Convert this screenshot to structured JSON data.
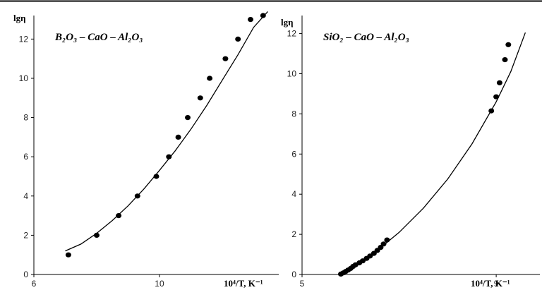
{
  "chart_data": [
    {
      "type": "scatter",
      "title": "B₂O₃ – CaO – Al₂O₃",
      "ylabel": "lgη",
      "xlabel": "10⁴/T, K⁻¹",
      "xlim": [
        6,
        13.8
      ],
      "ylim": [
        0,
        13.2
      ],
      "xticks": [
        6,
        10
      ],
      "yticks": [
        0,
        2,
        4,
        6,
        8,
        10,
        12
      ],
      "grid": false,
      "series": [
        {
          "kind": "points",
          "x": [
            7.1,
            8.0,
            8.7,
            9.3,
            9.9,
            10.3,
            10.6,
            10.9,
            11.3,
            11.6,
            12.1,
            12.5,
            12.9,
            13.3
          ],
          "y": [
            1.0,
            2.0,
            3.0,
            4.0,
            5.0,
            6.0,
            7.0,
            8.0,
            9.0,
            10.0,
            11.0,
            12.0,
            13.0,
            13.2
          ]
        },
        {
          "kind": "fit-line",
          "x": [
            7.0,
            7.5,
            8.0,
            8.5,
            9.0,
            9.5,
            10.0,
            10.5,
            11.0,
            11.5,
            12.0,
            12.5,
            13.0,
            13.45
          ],
          "y": [
            1.2,
            1.55,
            2.1,
            2.75,
            3.5,
            4.35,
            5.3,
            6.3,
            7.4,
            8.6,
            9.9,
            11.2,
            12.6,
            13.4
          ]
        }
      ]
    },
    {
      "type": "scatter",
      "title": "SiO₂ – CaO – Al₂O₃",
      "ylabel": "lgη",
      "xlabel": "10⁴/T, K⁻¹",
      "xlim": [
        5,
        9.9
      ],
      "ylim": [
        0,
        12.9
      ],
      "xticks": [
        5,
        9
      ],
      "yticks": [
        0,
        2,
        4,
        6,
        8,
        10,
        12
      ],
      "grid": false,
      "series": [
        {
          "kind": "points",
          "x": [
            5.8,
            5.85,
            5.9,
            5.95,
            6.0,
            6.05,
            6.1,
            6.18,
            6.25,
            6.33,
            6.4,
            6.48,
            6.55,
            6.62,
            6.68,
            6.75,
            8.9,
            9.0,
            9.07,
            9.18,
            9.25
          ],
          "y": [
            0.02,
            0.08,
            0.15,
            0.22,
            0.3,
            0.4,
            0.48,
            0.58,
            0.68,
            0.8,
            0.92,
            1.05,
            1.2,
            1.35,
            1.52,
            1.72,
            8.15,
            8.85,
            9.55,
            10.7,
            11.45
          ]
        },
        {
          "kind": "fit-line",
          "x": [
            5.75,
            6.0,
            6.5,
            7.0,
            7.5,
            8.0,
            8.5,
            9.0,
            9.3,
            9.6
          ],
          "y": [
            0.0,
            0.3,
            1.1,
            2.1,
            3.3,
            4.75,
            6.5,
            8.6,
            10.1,
            12.05
          ]
        }
      ]
    }
  ]
}
